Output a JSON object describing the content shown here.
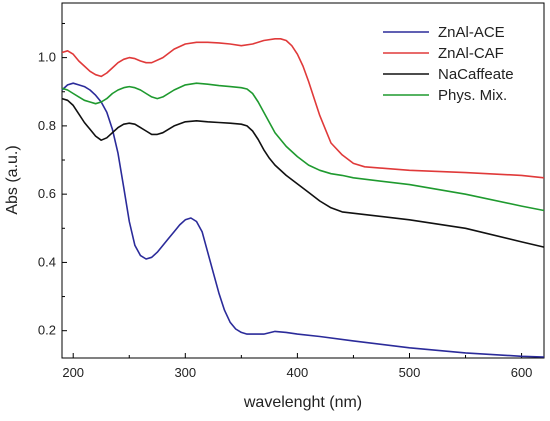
{
  "chart_data": {
    "type": "line",
    "title": "",
    "xlabel": "wavelenght (nm)",
    "ylabel": "Abs (a.u.)",
    "xlim": [
      190,
      620
    ],
    "ylim": [
      0.12,
      1.16
    ],
    "xticks": [
      200,
      300,
      400,
      500,
      600
    ],
    "yticks": [
      0.2,
      0.4,
      0.6,
      0.8,
      1.0
    ],
    "xtick_labels": [
      "200",
      "300",
      "400",
      "500",
      "600"
    ],
    "ytick_labels": [
      "0.2",
      "0.4",
      "0.6",
      "0.8",
      "1.0"
    ],
    "grid": false,
    "legend_position": "top-right",
    "series": [
      {
        "name": "ZnAl-ACE",
        "color": "#2b2b9a",
        "points": [
          [
            190,
            0.905
          ],
          [
            195,
            0.92
          ],
          [
            200,
            0.925
          ],
          [
            205,
            0.92
          ],
          [
            210,
            0.915
          ],
          [
            215,
            0.905
          ],
          [
            220,
            0.89
          ],
          [
            225,
            0.87
          ],
          [
            230,
            0.84
          ],
          [
            235,
            0.79
          ],
          [
            240,
            0.72
          ],
          [
            245,
            0.62
          ],
          [
            250,
            0.52
          ],
          [
            255,
            0.45
          ],
          [
            260,
            0.42
          ],
          [
            265,
            0.41
          ],
          [
            270,
            0.415
          ],
          [
            275,
            0.43
          ],
          [
            280,
            0.45
          ],
          [
            285,
            0.47
          ],
          [
            290,
            0.49
          ],
          [
            295,
            0.51
          ],
          [
            300,
            0.525
          ],
          [
            305,
            0.53
          ],
          [
            310,
            0.52
          ],
          [
            315,
            0.49
          ],
          [
            320,
            0.43
          ],
          [
            325,
            0.37
          ],
          [
            330,
            0.31
          ],
          [
            335,
            0.26
          ],
          [
            340,
            0.225
          ],
          [
            345,
            0.205
          ],
          [
            350,
            0.195
          ],
          [
            355,
            0.19
          ],
          [
            360,
            0.19
          ],
          [
            370,
            0.19
          ],
          [
            380,
            0.198
          ],
          [
            390,
            0.195
          ],
          [
            400,
            0.19
          ],
          [
            420,
            0.183
          ],
          [
            450,
            0.17
          ],
          [
            500,
            0.15
          ],
          [
            550,
            0.135
          ],
          [
            600,
            0.125
          ],
          [
            620,
            0.123
          ]
        ]
      },
      {
        "name": "ZnAl-CAF",
        "color": "#e03a3a",
        "points": [
          [
            190,
            1.015
          ],
          [
            195,
            1.02
          ],
          [
            200,
            1.01
          ],
          [
            205,
            0.99
          ],
          [
            210,
            0.975
          ],
          [
            215,
            0.96
          ],
          [
            220,
            0.95
          ],
          [
            225,
            0.945
          ],
          [
            230,
            0.955
          ],
          [
            235,
            0.97
          ],
          [
            240,
            0.985
          ],
          [
            245,
            0.995
          ],
          [
            250,
            1.0
          ],
          [
            255,
            0.997
          ],
          [
            260,
            0.99
          ],
          [
            265,
            0.985
          ],
          [
            270,
            0.985
          ],
          [
            280,
            1.0
          ],
          [
            290,
            1.025
          ],
          [
            300,
            1.04
          ],
          [
            310,
            1.045
          ],
          [
            320,
            1.045
          ],
          [
            330,
            1.043
          ],
          [
            340,
            1.04
          ],
          [
            350,
            1.035
          ],
          [
            360,
            1.04
          ],
          [
            370,
            1.05
          ],
          [
            380,
            1.055
          ],
          [
            385,
            1.055
          ],
          [
            390,
            1.05
          ],
          [
            395,
            1.035
          ],
          [
            400,
            1.01
          ],
          [
            405,
            0.975
          ],
          [
            410,
            0.93
          ],
          [
            415,
            0.88
          ],
          [
            420,
            0.83
          ],
          [
            425,
            0.79
          ],
          [
            430,
            0.75
          ],
          [
            440,
            0.715
          ],
          [
            450,
            0.69
          ],
          [
            460,
            0.68
          ],
          [
            480,
            0.675
          ],
          [
            500,
            0.67
          ],
          [
            550,
            0.663
          ],
          [
            600,
            0.655
          ],
          [
            620,
            0.648
          ]
        ]
      },
      {
        "name": "NaCaffeate",
        "color": "#111111",
        "points": [
          [
            190,
            0.88
          ],
          [
            195,
            0.875
          ],
          [
            200,
            0.86
          ],
          [
            205,
            0.835
          ],
          [
            210,
            0.81
          ],
          [
            215,
            0.79
          ],
          [
            220,
            0.77
          ],
          [
            225,
            0.758
          ],
          [
            230,
            0.765
          ],
          [
            235,
            0.78
          ],
          [
            240,
            0.795
          ],
          [
            245,
            0.805
          ],
          [
            250,
            0.808
          ],
          [
            255,
            0.805
          ],
          [
            260,
            0.795
          ],
          [
            265,
            0.785
          ],
          [
            270,
            0.775
          ],
          [
            275,
            0.775
          ],
          [
            280,
            0.78
          ],
          [
            290,
            0.8
          ],
          [
            300,
            0.812
          ],
          [
            310,
            0.815
          ],
          [
            320,
            0.812
          ],
          [
            330,
            0.81
          ],
          [
            340,
            0.808
          ],
          [
            350,
            0.805
          ],
          [
            355,
            0.8
          ],
          [
            360,
            0.785
          ],
          [
            365,
            0.76
          ],
          [
            370,
            0.73
          ],
          [
            375,
            0.705
          ],
          [
            380,
            0.685
          ],
          [
            390,
            0.655
          ],
          [
            400,
            0.63
          ],
          [
            410,
            0.605
          ],
          [
            420,
            0.58
          ],
          [
            430,
            0.56
          ],
          [
            440,
            0.548
          ],
          [
            460,
            0.54
          ],
          [
            500,
            0.525
          ],
          [
            550,
            0.5
          ],
          [
            600,
            0.46
          ],
          [
            620,
            0.445
          ]
        ]
      },
      {
        "name": "Phys. Mix.",
        "color": "#1f9a2f",
        "points": [
          [
            190,
            0.91
          ],
          [
            195,
            0.905
          ],
          [
            200,
            0.895
          ],
          [
            205,
            0.885
          ],
          [
            210,
            0.875
          ],
          [
            215,
            0.87
          ],
          [
            220,
            0.865
          ],
          [
            225,
            0.87
          ],
          [
            230,
            0.88
          ],
          [
            235,
            0.895
          ],
          [
            240,
            0.905
          ],
          [
            245,
            0.912
          ],
          [
            250,
            0.915
          ],
          [
            255,
            0.912
          ],
          [
            260,
            0.905
          ],
          [
            265,
            0.895
          ],
          [
            270,
            0.885
          ],
          [
            275,
            0.88
          ],
          [
            280,
            0.885
          ],
          [
            290,
            0.905
          ],
          [
            300,
            0.92
          ],
          [
            310,
            0.925
          ],
          [
            320,
            0.922
          ],
          [
            330,
            0.918
          ],
          [
            340,
            0.915
          ],
          [
            350,
            0.912
          ],
          [
            355,
            0.908
          ],
          [
            360,
            0.895
          ],
          [
            365,
            0.87
          ],
          [
            370,
            0.84
          ],
          [
            375,
            0.81
          ],
          [
            380,
            0.78
          ],
          [
            390,
            0.74
          ],
          [
            400,
            0.71
          ],
          [
            410,
            0.685
          ],
          [
            420,
            0.67
          ],
          [
            430,
            0.66
          ],
          [
            440,
            0.655
          ],
          [
            450,
            0.648
          ],
          [
            500,
            0.628
          ],
          [
            550,
            0.6
          ],
          [
            600,
            0.565
          ],
          [
            620,
            0.552
          ]
        ]
      }
    ]
  }
}
